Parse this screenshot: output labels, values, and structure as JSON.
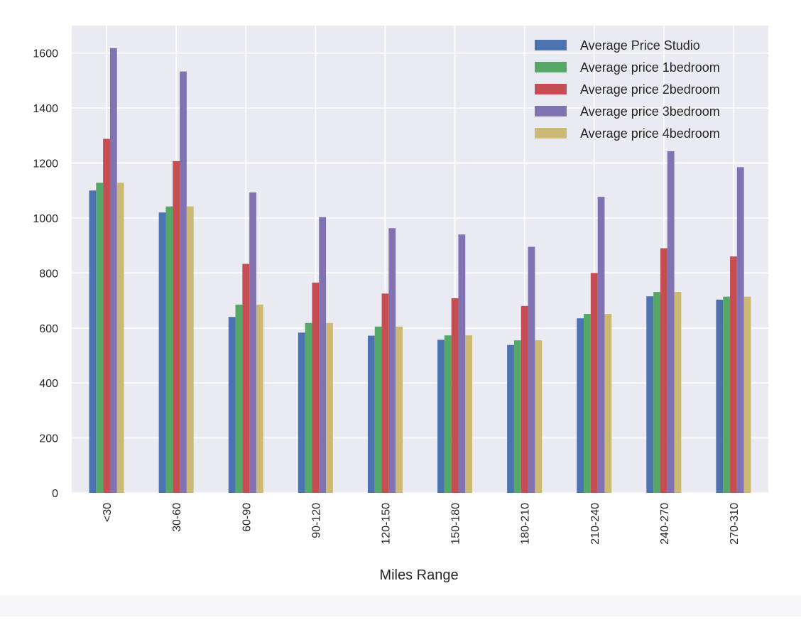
{
  "chart_data": {
    "type": "bar",
    "xlabel": "Miles Range",
    "ylabel": "",
    "ylim": [
      0,
      1700
    ],
    "yticks": [
      0,
      200,
      400,
      600,
      800,
      1000,
      1200,
      1400,
      1600
    ],
    "grid": true,
    "legend_position": "top-right",
    "categories": [
      "<30",
      "30-60",
      "60-90",
      "90-120",
      "120-150",
      "150-180",
      "180-210",
      "210-240",
      "240-270",
      "270-310"
    ],
    "series": [
      {
        "name": "Average Price Studio",
        "color": "#4c72b0",
        "values": [
          1100,
          1020,
          640,
          583,
          572,
          557,
          538,
          635,
          715,
          703
        ]
      },
      {
        "name": "Average price 1bedroom",
        "color": "#55a868",
        "values": [
          1128,
          1042,
          685,
          618,
          605,
          573,
          555,
          651,
          731,
          714
        ]
      },
      {
        "name": "Average price 2bedroom",
        "color": "#c44e52",
        "values": [
          1288,
          1207,
          833,
          765,
          725,
          708,
          680,
          800,
          890,
          860
        ]
      },
      {
        "name": "Average price 3bedroom",
        "color": "#8172b2",
        "values": [
          1618,
          1533,
          1093,
          1003,
          963,
          940,
          895,
          1077,
          1243,
          1185
        ]
      },
      {
        "name": "Average price 4bedroom",
        "color": "#ccb974",
        "values": [
          1128,
          1042,
          685,
          618,
          605,
          573,
          555,
          651,
          731,
          714
        ]
      }
    ],
    "plot_background": "#eaeaf2",
    "grid_color": "#ffffff"
  }
}
